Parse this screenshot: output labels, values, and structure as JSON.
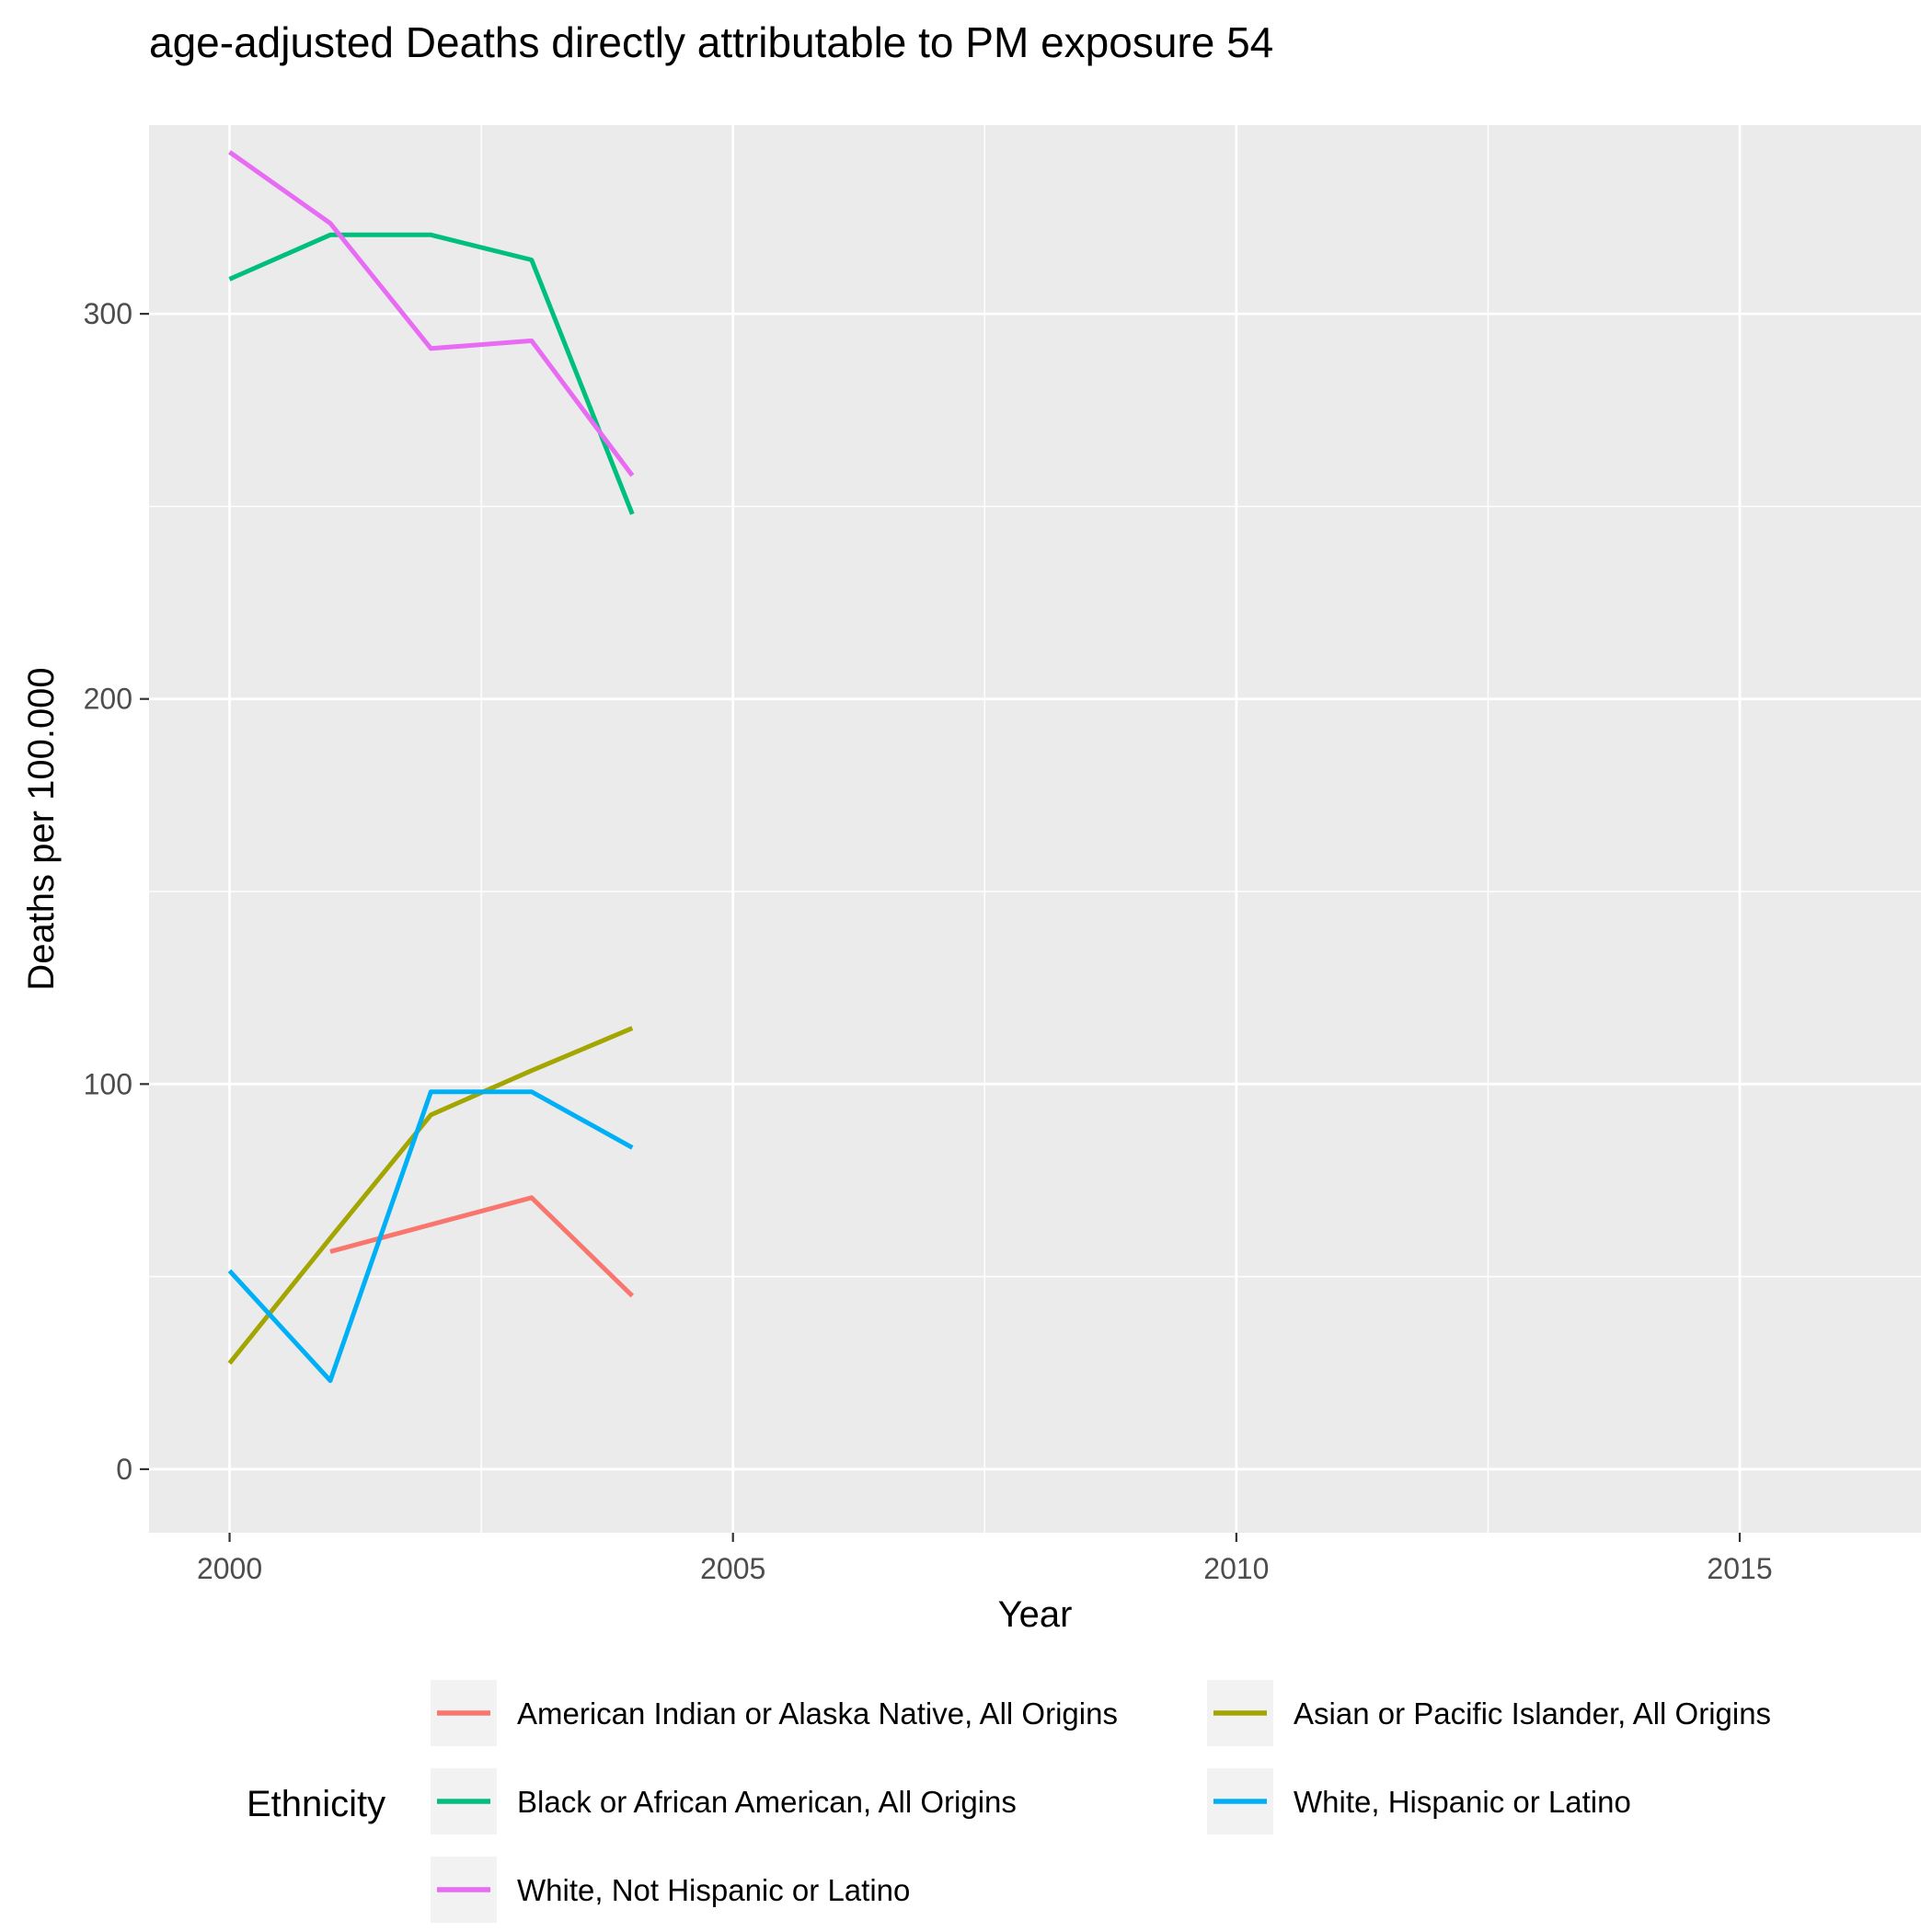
{
  "chart_data": {
    "type": "line",
    "title": "age-adjusted Deaths directly attributable to PM exposure 54",
    "xlabel": "Year",
    "ylabel": "Deaths per 100.000",
    "xlim": [
      1999.2,
      2016.8
    ],
    "ylim": [
      -16.5,
      349
    ],
    "x_ticks": [
      2000,
      2005,
      2010,
      2015
    ],
    "y_ticks": [
      0,
      100,
      200,
      300
    ],
    "grid": true,
    "legend": {
      "title": "Ethnicity",
      "position": "bottom",
      "columns": 2
    },
    "series": [
      {
        "name": "American Indian or Alaska Native, All Origins",
        "color": "#F8766D",
        "points": [
          [
            2001,
            56.5
          ],
          [
            2002,
            63.5
          ],
          [
            2003,
            70.5
          ],
          [
            2004,
            45
          ]
        ]
      },
      {
        "name": "Asian or Pacific Islander, All Origins",
        "color": "#A3A500",
        "points": [
          [
            2000,
            27.5
          ],
          [
            2001,
            60
          ],
          [
            2002,
            92
          ],
          [
            2003,
            103.5
          ],
          [
            2004,
            114.5
          ]
        ]
      },
      {
        "name": "Black or African American, All Origins",
        "color": "#00BF7D",
        "points": [
          [
            2000,
            309
          ],
          [
            2001,
            320.5
          ],
          [
            2002,
            320.5
          ],
          [
            2003,
            314
          ],
          [
            2004,
            248
          ]
        ]
      },
      {
        "name": "White, Hispanic or Latino",
        "color": "#00B0F6",
        "points": [
          [
            2000,
            51.5
          ],
          [
            2001,
            23
          ],
          [
            2002,
            98
          ],
          [
            2003,
            98
          ],
          [
            2004,
            83.5
          ]
        ]
      },
      {
        "name": "White, Not Hispanic or Latino",
        "color": "#E76BF3",
        "points": [
          [
            2000,
            342
          ],
          [
            2001,
            323.5
          ],
          [
            2002,
            291
          ],
          [
            2003,
            293
          ],
          [
            2004,
            258
          ]
        ]
      }
    ]
  }
}
